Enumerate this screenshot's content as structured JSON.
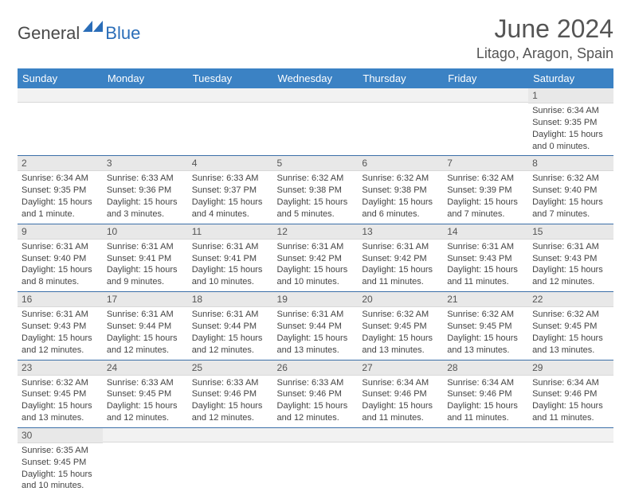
{
  "logo": {
    "part1": "General",
    "part2": "Blue"
  },
  "title": "June 2024",
  "location": "Litago, Aragon, Spain",
  "weekdays": [
    "Sunday",
    "Monday",
    "Tuesday",
    "Wednesday",
    "Thursday",
    "Friday",
    "Saturday"
  ],
  "colors": {
    "header_bg": "#3b82c4",
    "header_text": "#ffffff",
    "row_border": "#3b6fa8",
    "daynum_bg": "#e8e8e8",
    "logo_blue": "#2a6db8"
  },
  "weeks": [
    [
      null,
      null,
      null,
      null,
      null,
      null,
      {
        "n": "1",
        "sr": "6:34 AM",
        "ss": "9:35 PM",
        "dl": "15 hours and 0 minutes."
      }
    ],
    [
      {
        "n": "2",
        "sr": "6:34 AM",
        "ss": "9:35 PM",
        "dl": "15 hours and 1 minute."
      },
      {
        "n": "3",
        "sr": "6:33 AM",
        "ss": "9:36 PM",
        "dl": "15 hours and 3 minutes."
      },
      {
        "n": "4",
        "sr": "6:33 AM",
        "ss": "9:37 PM",
        "dl": "15 hours and 4 minutes."
      },
      {
        "n": "5",
        "sr": "6:32 AM",
        "ss": "9:38 PM",
        "dl": "15 hours and 5 minutes."
      },
      {
        "n": "6",
        "sr": "6:32 AM",
        "ss": "9:38 PM",
        "dl": "15 hours and 6 minutes."
      },
      {
        "n": "7",
        "sr": "6:32 AM",
        "ss": "9:39 PM",
        "dl": "15 hours and 7 minutes."
      },
      {
        "n": "8",
        "sr": "6:32 AM",
        "ss": "9:40 PM",
        "dl": "15 hours and 7 minutes."
      }
    ],
    [
      {
        "n": "9",
        "sr": "6:31 AM",
        "ss": "9:40 PM",
        "dl": "15 hours and 8 minutes."
      },
      {
        "n": "10",
        "sr": "6:31 AM",
        "ss": "9:41 PM",
        "dl": "15 hours and 9 minutes."
      },
      {
        "n": "11",
        "sr": "6:31 AM",
        "ss": "9:41 PM",
        "dl": "15 hours and 10 minutes."
      },
      {
        "n": "12",
        "sr": "6:31 AM",
        "ss": "9:42 PM",
        "dl": "15 hours and 10 minutes."
      },
      {
        "n": "13",
        "sr": "6:31 AM",
        "ss": "9:42 PM",
        "dl": "15 hours and 11 minutes."
      },
      {
        "n": "14",
        "sr": "6:31 AM",
        "ss": "9:43 PM",
        "dl": "15 hours and 11 minutes."
      },
      {
        "n": "15",
        "sr": "6:31 AM",
        "ss": "9:43 PM",
        "dl": "15 hours and 12 minutes."
      }
    ],
    [
      {
        "n": "16",
        "sr": "6:31 AM",
        "ss": "9:43 PM",
        "dl": "15 hours and 12 minutes."
      },
      {
        "n": "17",
        "sr": "6:31 AM",
        "ss": "9:44 PM",
        "dl": "15 hours and 12 minutes."
      },
      {
        "n": "18",
        "sr": "6:31 AM",
        "ss": "9:44 PM",
        "dl": "15 hours and 12 minutes."
      },
      {
        "n": "19",
        "sr": "6:31 AM",
        "ss": "9:44 PM",
        "dl": "15 hours and 13 minutes."
      },
      {
        "n": "20",
        "sr": "6:32 AM",
        "ss": "9:45 PM",
        "dl": "15 hours and 13 minutes."
      },
      {
        "n": "21",
        "sr": "6:32 AM",
        "ss": "9:45 PM",
        "dl": "15 hours and 13 minutes."
      },
      {
        "n": "22",
        "sr": "6:32 AM",
        "ss": "9:45 PM",
        "dl": "15 hours and 13 minutes."
      }
    ],
    [
      {
        "n": "23",
        "sr": "6:32 AM",
        "ss": "9:45 PM",
        "dl": "15 hours and 13 minutes."
      },
      {
        "n": "24",
        "sr": "6:33 AM",
        "ss": "9:45 PM",
        "dl": "15 hours and 12 minutes."
      },
      {
        "n": "25",
        "sr": "6:33 AM",
        "ss": "9:46 PM",
        "dl": "15 hours and 12 minutes."
      },
      {
        "n": "26",
        "sr": "6:33 AM",
        "ss": "9:46 PM",
        "dl": "15 hours and 12 minutes."
      },
      {
        "n": "27",
        "sr": "6:34 AM",
        "ss": "9:46 PM",
        "dl": "15 hours and 11 minutes."
      },
      {
        "n": "28",
        "sr": "6:34 AM",
        "ss": "9:46 PM",
        "dl": "15 hours and 11 minutes."
      },
      {
        "n": "29",
        "sr": "6:34 AM",
        "ss": "9:46 PM",
        "dl": "15 hours and 11 minutes."
      }
    ],
    [
      {
        "n": "30",
        "sr": "6:35 AM",
        "ss": "9:45 PM",
        "dl": "15 hours and 10 minutes."
      },
      null,
      null,
      null,
      null,
      null,
      null
    ]
  ],
  "labels": {
    "sunrise": "Sunrise:",
    "sunset": "Sunset:",
    "daylight": "Daylight:"
  }
}
